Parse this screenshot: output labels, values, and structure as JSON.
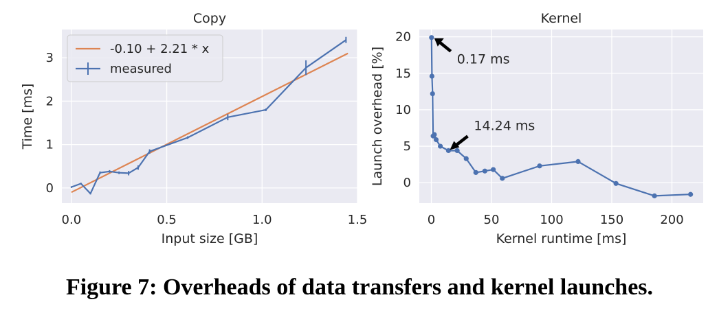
{
  "caption": "Figure 7: Overheads of data transfers and kernel launches.",
  "colors": {
    "blue": "#4c72b0",
    "orange": "#dd8452",
    "panel": "#eaeaf2",
    "grid": "#ffffff"
  },
  "chart_data": [
    {
      "type": "line",
      "title": "Copy",
      "xlabel": "Input size [GB]",
      "ylabel": "Time [ms]",
      "xlim": [
        -0.05,
        1.5
      ],
      "ylim": [
        -0.35,
        3.65
      ],
      "xticks": [
        0.0,
        0.5,
        1.0,
        1.5
      ],
      "xtick_labels": [
        "0.0",
        "0.5",
        "1.0",
        "1.5"
      ],
      "yticks": [
        0,
        1,
        2,
        3
      ],
      "ytick_labels": [
        "0",
        "1",
        "2",
        "3"
      ],
      "grid": true,
      "legend": "top-left",
      "series": [
        {
          "name": "-0.10 + 2.21 * x",
          "kind": "fit",
          "color": "#dd8452",
          "x": [
            0.0,
            1.45
          ],
          "y": [
            -0.1,
            3.1
          ]
        },
        {
          "name": "measured",
          "kind": "errorbar",
          "color": "#4c72b0",
          "x": [
            0.0,
            0.05,
            0.1,
            0.15,
            0.2,
            0.25,
            0.3,
            0.35,
            0.41,
            0.61,
            0.82,
            1.02,
            1.23,
            1.44
          ],
          "y": [
            0.02,
            0.1,
            -0.13,
            0.35,
            0.38,
            0.35,
            0.34,
            0.47,
            0.84,
            1.16,
            1.63,
            1.8,
            2.77,
            3.41
          ],
          "err": [
            0.02,
            0.02,
            0.02,
            0.03,
            0.03,
            0.03,
            0.05,
            0.05,
            0.05,
            0.03,
            0.07,
            0.03,
            0.17,
            0.07
          ]
        }
      ]
    },
    {
      "type": "line",
      "title": "Kernel",
      "xlabel": "Kernel runtime [ms]",
      "ylabel": "Launch overhead [%]",
      "xlim": [
        -10,
        226
      ],
      "ylim": [
        -2.8,
        21.0
      ],
      "xticks": [
        0,
        50,
        100,
        150,
        200
      ],
      "xtick_labels": [
        "0",
        "50",
        "100",
        "150",
        "200"
      ],
      "yticks": [
        0,
        5,
        10,
        15,
        20
      ],
      "ytick_labels": [
        "0",
        "5",
        "10",
        "15",
        "20"
      ],
      "grid": true,
      "series": [
        {
          "name": "",
          "color": "#4c72b0",
          "x": [
            0.17,
            0.5,
            1.0,
            1.5,
            2.5,
            4.0,
            7.5,
            14.24,
            21.5,
            29.0,
            37.0,
            44.5,
            51.5,
            59.0,
            90.0,
            122.0,
            153.5,
            185.5,
            215.5
          ],
          "y": [
            19.9,
            14.6,
            12.2,
            6.4,
            6.6,
            5.9,
            5.0,
            4.4,
            4.4,
            3.3,
            1.4,
            1.6,
            1.8,
            0.6,
            2.3,
            2.9,
            -0.1,
            -1.8,
            -1.6
          ]
        }
      ],
      "annotations": [
        {
          "text": "0.17 ms",
          "point": [
            0.17,
            19.9
          ]
        },
        {
          "text": "14.24 ms",
          "point": [
            14.24,
            4.4
          ]
        }
      ]
    }
  ]
}
